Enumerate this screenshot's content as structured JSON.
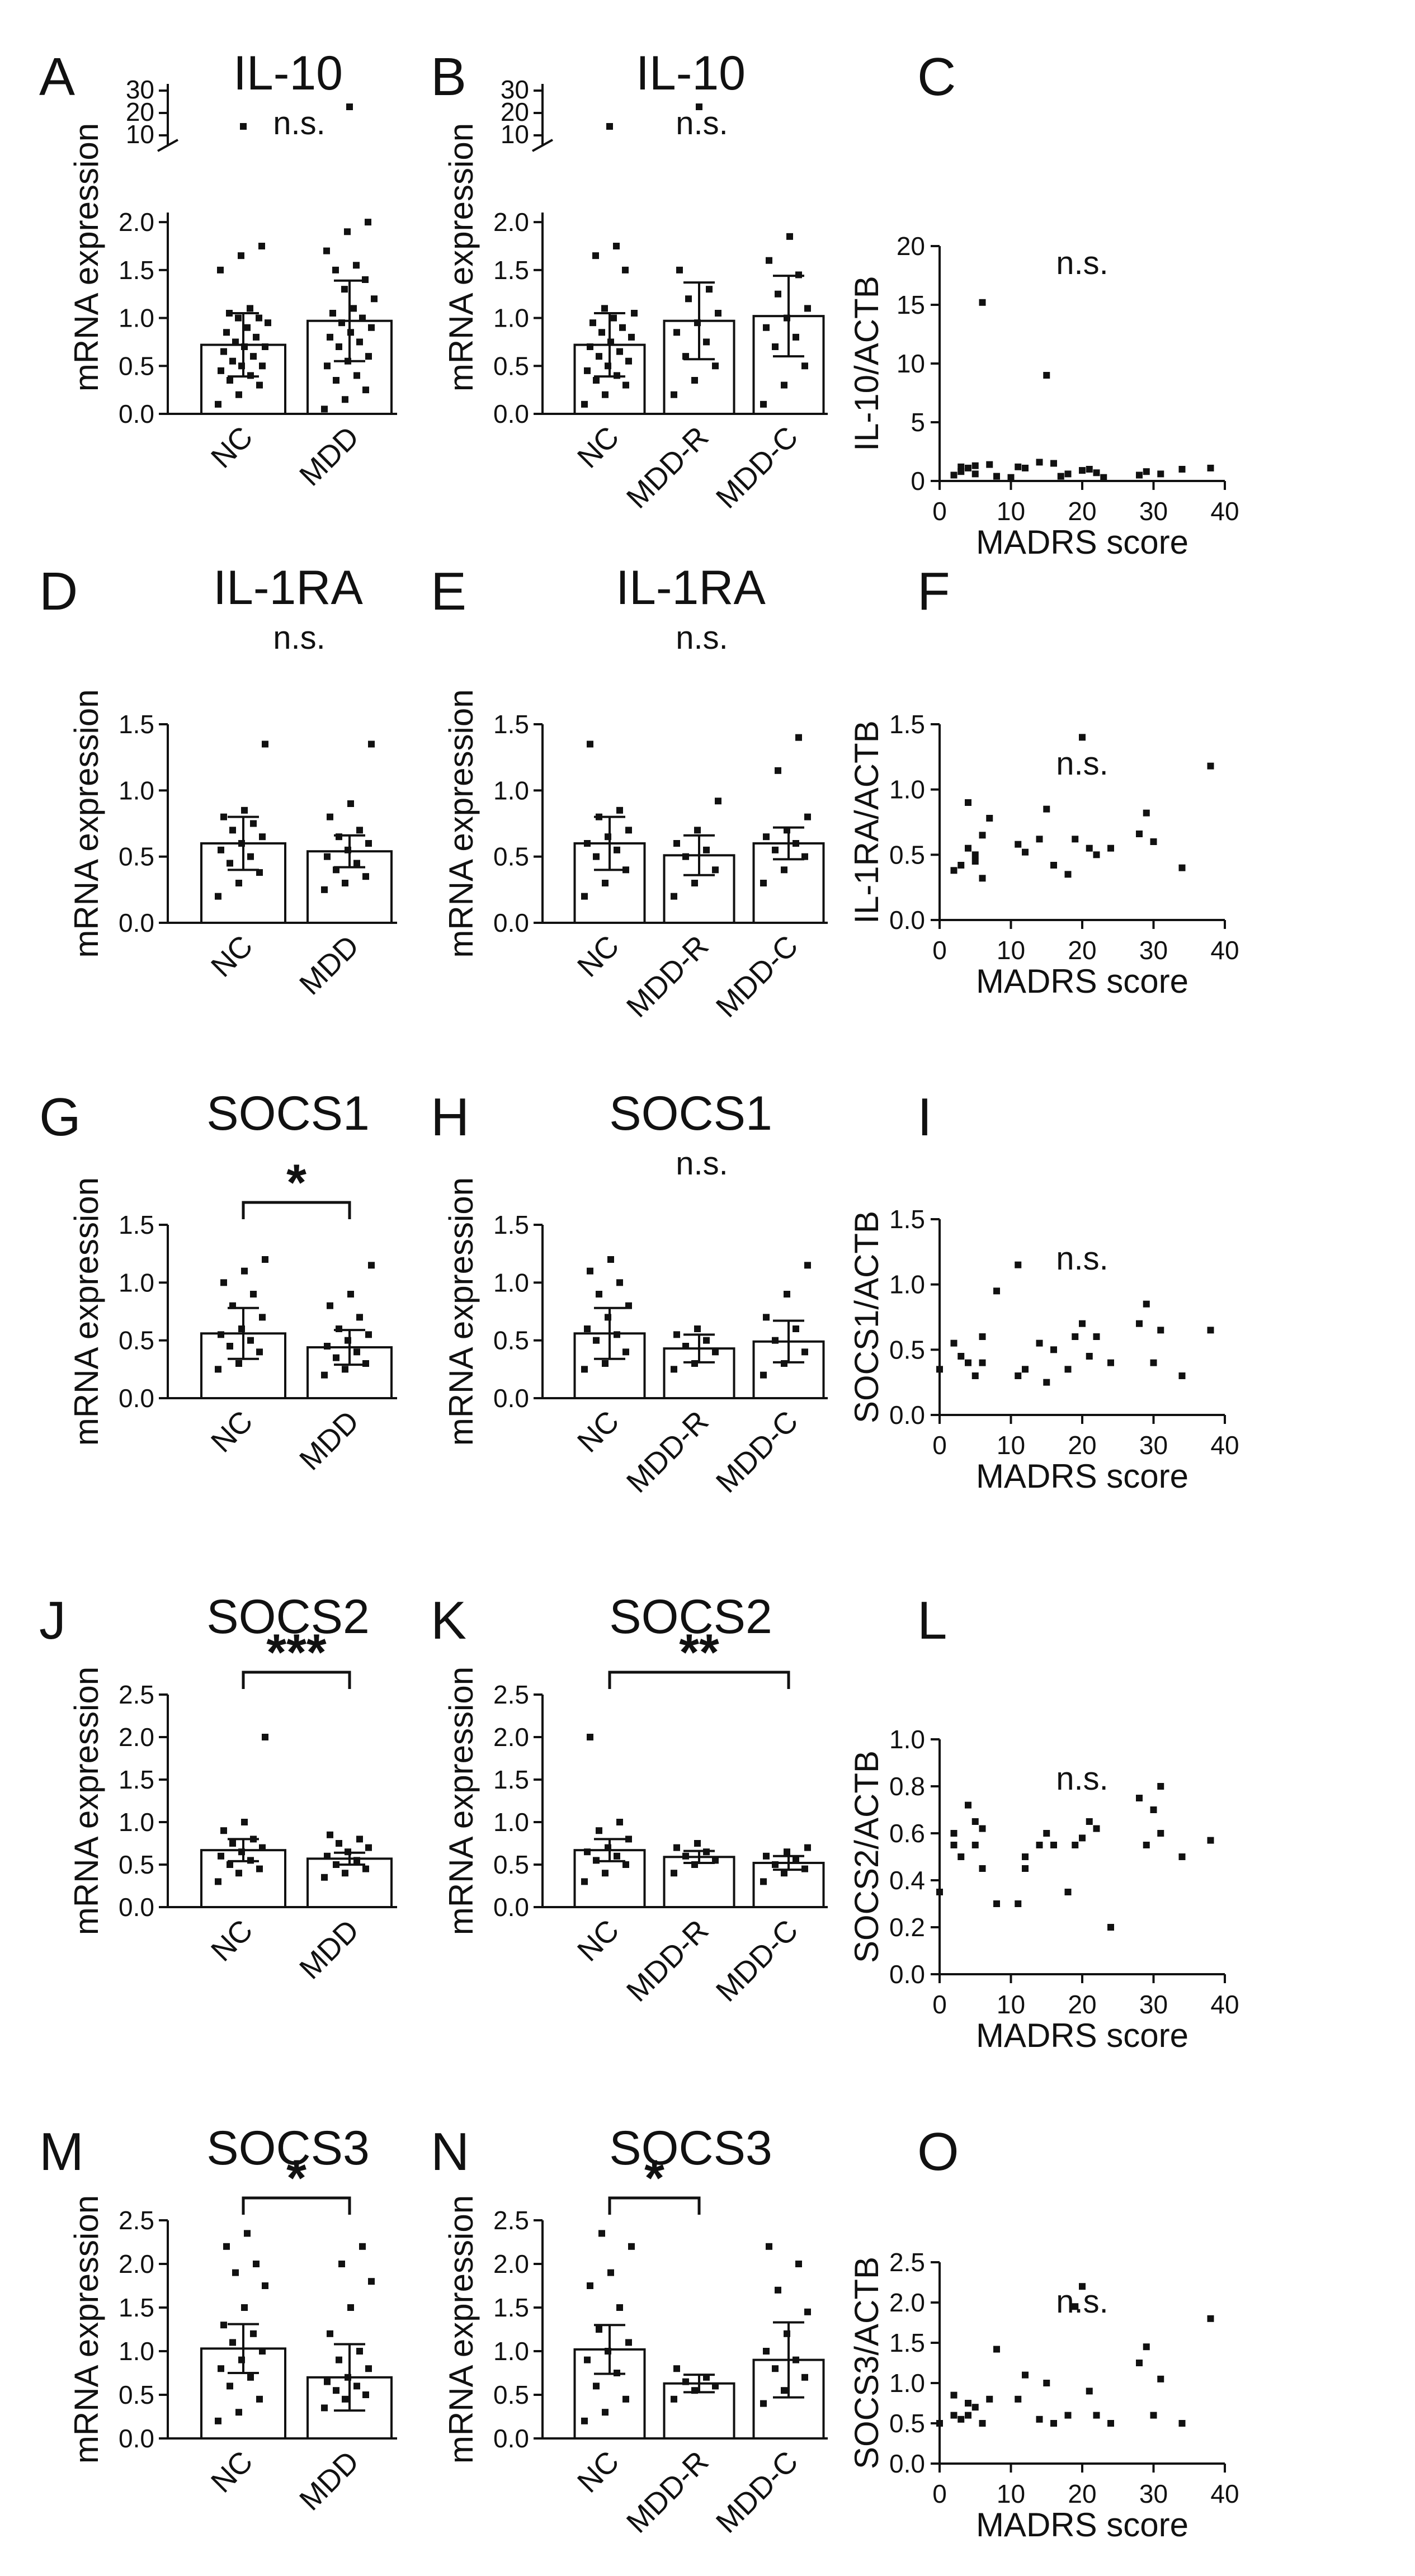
{
  "chart_data": [
    {
      "id": "A",
      "type": "bar",
      "title": "IL-10",
      "ylabel": "mRNA expression",
      "categories": [
        "NC",
        "MDD"
      ],
      "values": [
        0.72,
        0.97
      ],
      "errors": [
        0.33,
        0.42
      ],
      "ylim": [
        0,
        2.1
      ],
      "broken_axis": true,
      "ticks": [
        "0.0",
        "0.5",
        "1.0",
        "1.5",
        "2.0"
      ],
      "break_ticks": [
        "10",
        "20",
        "30"
      ],
      "significance": [
        {
          "text": "n.s."
        }
      ],
      "points": [
        [
          0.1,
          0.2,
          0.3,
          0.35,
          0.4,
          0.45,
          0.5,
          0.5,
          0.55,
          0.6,
          0.65,
          0.7,
          0.7,
          0.75,
          0.8,
          0.85,
          0.9,
          0.95,
          1.0,
          1.0,
          1.05,
          1.1,
          1.5,
          1.65,
          1.75
        ],
        [
          0.05,
          0.15,
          0.25,
          0.35,
          0.4,
          0.5,
          0.55,
          0.6,
          0.7,
          0.75,
          0.8,
          0.85,
          0.9,
          0.95,
          1.0,
          1.05,
          1.1,
          1.2,
          1.3,
          1.4,
          1.5,
          1.55,
          1.7,
          1.9,
          2.0
        ]
      ]
    },
    {
      "id": "B",
      "type": "bar",
      "title": "IL-10",
      "ylabel": "mRNA expression",
      "categories": [
        "NC",
        "MDD-R",
        "MDD-C"
      ],
      "values": [
        0.72,
        0.97,
        1.02
      ],
      "errors": [
        0.33,
        0.4,
        0.42
      ],
      "ylim": [
        0,
        2.1
      ],
      "broken_axis": true,
      "ticks": [
        "0.0",
        "0.5",
        "1.0",
        "1.5",
        "2.0"
      ],
      "break_ticks": [
        "10",
        "20",
        "30"
      ],
      "significance": [
        {
          "text": "n.s."
        }
      ],
      "points": [
        [
          0.1,
          0.2,
          0.3,
          0.35,
          0.4,
          0.45,
          0.5,
          0.55,
          0.6,
          0.65,
          0.7,
          0.75,
          0.8,
          0.85,
          0.9,
          0.95,
          1.0,
          1.05,
          1.1,
          1.5,
          1.65,
          1.75
        ],
        [
          0.2,
          0.35,
          0.5,
          0.6,
          0.75,
          0.85,
          0.95,
          1.05,
          1.2,
          1.3,
          1.5
        ],
        [
          0.1,
          0.3,
          0.5,
          0.7,
          0.8,
          0.9,
          1.0,
          1.1,
          1.25,
          1.45,
          1.6,
          1.85
        ]
      ]
    },
    {
      "id": "C",
      "type": "scatter",
      "title": "n.s.",
      "xlabel": "MADRS score",
      "ylabel": "IL-10/ACTB",
      "xlim": [
        0,
        40
      ],
      "ylim": [
        0,
        20
      ],
      "xticks": [
        "0",
        "10",
        "20",
        "30",
        "40"
      ],
      "yticks": [
        "0",
        "5",
        "10",
        "15",
        "20"
      ],
      "x": [
        2,
        3,
        3,
        4,
        5,
        5,
        6,
        7,
        8,
        10,
        11,
        12,
        14,
        15,
        16,
        17,
        18,
        20,
        21,
        22,
        23,
        28,
        29,
        31,
        34,
        38
      ],
      "y": [
        0.5,
        1.2,
        0.8,
        1.1,
        0.6,
        1.3,
        15.2,
        1.4,
        0.4,
        0.3,
        1.2,
        1.1,
        1.6,
        9.0,
        1.5,
        0.4,
        0.6,
        0.9,
        1.0,
        0.7,
        0.3,
        0.5,
        0.8,
        0.6,
        1.0,
        1.1
      ]
    },
    {
      "id": "D",
      "type": "bar",
      "title": "IL-1RA",
      "ylabel": "mRNA expression",
      "categories": [
        "NC",
        "MDD"
      ],
      "values": [
        0.6,
        0.54
      ],
      "errors": [
        0.2,
        0.12
      ],
      "ylim": [
        0,
        1.5
      ],
      "ticks": [
        "0.0",
        "0.5",
        "1.0",
        "1.5"
      ],
      "significance": [
        {
          "text": "n.s."
        }
      ],
      "points": [
        [
          0.2,
          0.3,
          0.38,
          0.45,
          0.5,
          0.55,
          0.6,
          0.65,
          0.7,
          0.75,
          0.8,
          0.85,
          1.35
        ],
        [
          0.25,
          0.3,
          0.35,
          0.4,
          0.45,
          0.5,
          0.55,
          0.6,
          0.65,
          0.7,
          0.8,
          0.9,
          1.35
        ]
      ]
    },
    {
      "id": "E",
      "type": "bar",
      "title": "IL-1RA",
      "ylabel": "mRNA expression",
      "categories": [
        "NC",
        "MDD-R",
        "MDD-C"
      ],
      "values": [
        0.6,
        0.51,
        0.6
      ],
      "errors": [
        0.2,
        0.15,
        0.12
      ],
      "ylim": [
        0,
        1.5
      ],
      "ticks": [
        "0.0",
        "0.5",
        "1.0",
        "1.5"
      ],
      "significance": [
        {
          "text": "n.s."
        }
      ],
      "points": [
        [
          0.2,
          0.3,
          0.4,
          0.5,
          0.55,
          0.6,
          0.65,
          0.7,
          0.8,
          0.85,
          1.35
        ],
        [
          0.2,
          0.3,
          0.4,
          0.5,
          0.55,
          0.6,
          0.7,
          0.92
        ],
        [
          0.3,
          0.4,
          0.5,
          0.55,
          0.6,
          0.65,
          0.7,
          0.8,
          1.15,
          1.4
        ]
      ]
    },
    {
      "id": "F",
      "type": "scatter",
      "title": "n.s.",
      "xlabel": "MADRS score",
      "ylabel": "IL-1RA/ACTB",
      "xlim": [
        0,
        40
      ],
      "ylim": [
        0,
        1.5
      ],
      "xticks": [
        "0",
        "10",
        "20",
        "30",
        "40"
      ],
      "yticks": [
        "0.0",
        "0.5",
        "1.0",
        "1.5"
      ],
      "x": [
        2,
        3,
        4,
        4,
        5,
        5,
        6,
        6,
        7,
        11,
        12,
        14,
        15,
        16,
        18,
        19,
        20,
        21,
        22,
        24,
        28,
        29,
        30,
        34,
        38
      ],
      "y": [
        0.38,
        0.42,
        0.9,
        0.55,
        0.5,
        0.45,
        0.32,
        0.65,
        0.78,
        0.58,
        0.52,
        0.62,
        0.85,
        0.42,
        0.35,
        0.62,
        1.4,
        0.55,
        0.5,
        0.55,
        0.66,
        0.82,
        0.6,
        0.4,
        1.18
      ]
    },
    {
      "id": "G",
      "type": "bar",
      "title": "SOCS1",
      "ylabel": "mRNA expression",
      "categories": [
        "NC",
        "MDD"
      ],
      "values": [
        0.56,
        0.44
      ],
      "errors": [
        0.22,
        0.15
      ],
      "ylim": [
        0,
        1.5
      ],
      "ticks": [
        "0.0",
        "0.5",
        "1.0",
        "1.5"
      ],
      "significance": [
        {
          "text": "*",
          "from": 0,
          "to": 1
        }
      ],
      "points": [
        [
          0.25,
          0.3,
          0.4,
          0.45,
          0.5,
          0.55,
          0.6,
          0.7,
          0.8,
          0.9,
          1.0,
          1.1,
          1.2
        ],
        [
          0.2,
          0.25,
          0.3,
          0.35,
          0.4,
          0.45,
          0.5,
          0.55,
          0.6,
          0.7,
          0.8,
          0.9,
          1.15
        ]
      ]
    },
    {
      "id": "H",
      "type": "bar",
      "title": "SOCS1",
      "ylabel": "mRNA expression",
      "categories": [
        "NC",
        "MDD-R",
        "MDD-C"
      ],
      "values": [
        0.56,
        0.43,
        0.49
      ],
      "errors": [
        0.22,
        0.12,
        0.18
      ],
      "ylim": [
        0,
        1.5
      ],
      "ticks": [
        "0.0",
        "0.5",
        "1.0",
        "1.5"
      ],
      "significance": [
        {
          "text": "n.s."
        }
      ],
      "points": [
        [
          0.25,
          0.3,
          0.4,
          0.5,
          0.55,
          0.6,
          0.7,
          0.8,
          0.9,
          1.0,
          1.1,
          1.2
        ],
        [
          0.25,
          0.3,
          0.4,
          0.45,
          0.5,
          0.55,
          0.6
        ],
        [
          0.2,
          0.3,
          0.4,
          0.5,
          0.6,
          0.7,
          0.9,
          1.15
        ]
      ]
    },
    {
      "id": "I",
      "type": "scatter",
      "title": "n.s.",
      "xlabel": "MADRS score",
      "ylabel": "SOCS1/ACTB",
      "xlim": [
        0,
        40
      ],
      "ylim": [
        0,
        1.5
      ],
      "xticks": [
        "0",
        "10",
        "20",
        "30",
        "40"
      ],
      "yticks": [
        "0.0",
        "0.5",
        "1.0",
        "1.5"
      ],
      "x": [
        0,
        2,
        3,
        4,
        5,
        6,
        6,
        8,
        11,
        11,
        12,
        14,
        15,
        16,
        18,
        19,
        20,
        21,
        22,
        24,
        28,
        29,
        30,
        31,
        34,
        38
      ],
      "y": [
        0.35,
        0.55,
        0.45,
        0.4,
        0.3,
        0.6,
        0.4,
        0.95,
        1.15,
        0.3,
        0.35,
        0.55,
        0.25,
        0.5,
        0.35,
        0.6,
        0.7,
        0.45,
        0.6,
        0.4,
        0.7,
        0.85,
        0.4,
        0.65,
        0.3,
        0.65
      ]
    },
    {
      "id": "J",
      "type": "bar",
      "title": "SOCS2",
      "ylabel": "mRNA expression",
      "categories": [
        "NC",
        "MDD"
      ],
      "values": [
        0.67,
        0.57
      ],
      "errors": [
        0.13,
        0.07
      ],
      "ylim": [
        0,
        2.5
      ],
      "ticks": [
        "0.0",
        "0.5",
        "1.0",
        "1.5",
        "2.0",
        "2.5"
      ],
      "significance": [
        {
          "text": "***",
          "from": 0,
          "to": 1
        }
      ],
      "points": [
        [
          0.3,
          0.4,
          0.45,
          0.5,
          0.55,
          0.6,
          0.65,
          0.7,
          0.75,
          0.8,
          0.9,
          1.0,
          2.0
        ],
        [
          0.35,
          0.4,
          0.45,
          0.5,
          0.55,
          0.6,
          0.65,
          0.7,
          0.75,
          0.8,
          0.85
        ]
      ]
    },
    {
      "id": "K",
      "type": "bar",
      "title": "SOCS2",
      "ylabel": "mRNA expression",
      "categories": [
        "NC",
        "MDD-R",
        "MDD-C"
      ],
      "values": [
        0.67,
        0.59,
        0.52
      ],
      "errors": [
        0.13,
        0.07,
        0.08
      ],
      "ylim": [
        0,
        2.5
      ],
      "ticks": [
        "0.0",
        "0.5",
        "1.0",
        "1.5",
        "2.0",
        "2.5"
      ],
      "significance": [
        {
          "text": "**",
          "from": 0,
          "to": 2
        }
      ],
      "points": [
        [
          0.3,
          0.4,
          0.5,
          0.55,
          0.6,
          0.65,
          0.7,
          0.8,
          0.9,
          1.0,
          2.0
        ],
        [
          0.4,
          0.5,
          0.55,
          0.6,
          0.65,
          0.7,
          0.75
        ],
        [
          0.3,
          0.4,
          0.45,
          0.5,
          0.55,
          0.6,
          0.65,
          0.7
        ]
      ]
    },
    {
      "id": "L",
      "type": "scatter",
      "title": "n.s.",
      "xlabel": "MADRS score",
      "ylabel": "SOCS2/ACTB",
      "xlim": [
        0,
        40
      ],
      "ylim": [
        0,
        1.0
      ],
      "xticks": [
        "0",
        "10",
        "20",
        "30",
        "40"
      ],
      "yticks": [
        "0.0",
        "0.2",
        "0.4",
        "0.6",
        "0.8",
        "1.0"
      ],
      "x": [
        0,
        2,
        2,
        3,
        4,
        5,
        5,
        6,
        6,
        8,
        11,
        12,
        12,
        14,
        15,
        16,
        18,
        19,
        20,
        21,
        22,
        24,
        28,
        29,
        30,
        31,
        31,
        34,
        38
      ],
      "y": [
        0.35,
        0.55,
        0.6,
        0.5,
        0.72,
        0.55,
        0.65,
        0.45,
        0.62,
        0.3,
        0.3,
        0.45,
        0.5,
        0.55,
        0.6,
        0.55,
        0.35,
        0.55,
        0.58,
        0.65,
        0.62,
        0.2,
        0.75,
        0.55,
        0.7,
        0.8,
        0.6,
        0.5,
        0.57
      ]
    },
    {
      "id": "M",
      "type": "bar",
      "title": "SOCS3",
      "ylabel": "mRNA expression",
      "categories": [
        "NC",
        "MDD"
      ],
      "values": [
        1.03,
        0.7
      ],
      "errors": [
        0.28,
        0.38
      ],
      "ylim": [
        0,
        2.5
      ],
      "ticks": [
        "0.0",
        "0.5",
        "1.0",
        "1.5",
        "2.0",
        "2.5"
      ],
      "significance": [
        {
          "text": "*",
          "from": 0,
          "to": 1
        }
      ],
      "points": [
        [
          0.2,
          0.3,
          0.45,
          0.6,
          0.7,
          0.8,
          0.9,
          1.0,
          1.1,
          1.2,
          1.3,
          1.5,
          1.75,
          1.9,
          2.0,
          2.2,
          2.35
        ],
        [
          0.35,
          0.45,
          0.5,
          0.55,
          0.6,
          0.65,
          0.7,
          0.8,
          0.9,
          1.0,
          1.2,
          1.5,
          1.8,
          2.0,
          2.2
        ]
      ]
    },
    {
      "id": "N",
      "type": "bar",
      "title": "SOCS3",
      "ylabel": "mRNA expression",
      "categories": [
        "NC",
        "MDD-R",
        "MDD-C"
      ],
      "values": [
        1.02,
        0.63,
        0.9
      ],
      "errors": [
        0.28,
        0.1,
        0.43
      ],
      "ylim": [
        0,
        2.5
      ],
      "ticks": [
        "0.0",
        "0.5",
        "1.0",
        "1.5",
        "2.0",
        "2.5"
      ],
      "significance": [
        {
          "text": "*",
          "from": 0,
          "to": 1
        }
      ],
      "points": [
        [
          0.2,
          0.3,
          0.45,
          0.6,
          0.75,
          0.9,
          1.0,
          1.1,
          1.25,
          1.5,
          1.75,
          1.9,
          2.2,
          2.35
        ],
        [
          0.45,
          0.55,
          0.6,
          0.65,
          0.7,
          0.8
        ],
        [
          0.4,
          0.55,
          0.7,
          0.8,
          0.9,
          1.0,
          1.2,
          1.45,
          1.7,
          2.0,
          2.2
        ]
      ]
    },
    {
      "id": "O",
      "type": "scatter",
      "title": "n.s.",
      "xlabel": "MADRS score",
      "ylabel": "SOCS3/ACTB",
      "xlim": [
        0,
        40
      ],
      "ylim": [
        0,
        2.5
      ],
      "xticks": [
        "0",
        "10",
        "20",
        "30",
        "40"
      ],
      "yticks": [
        "0.0",
        "0.5",
        "1.0",
        "1.5",
        "2.0",
        "2.5"
      ],
      "x": [
        0,
        2,
        2,
        3,
        4,
        4,
        5,
        6,
        7,
        8,
        11,
        12,
        14,
        15,
        16,
        18,
        19,
        20,
        21,
        22,
        24,
        28,
        29,
        30,
        31,
        34,
        38
      ],
      "y": [
        0.5,
        0.6,
        0.85,
        0.55,
        0.75,
        0.6,
        0.7,
        0.5,
        0.8,
        1.42,
        0.8,
        1.1,
        0.55,
        1.0,
        0.5,
        0.6,
        1.95,
        2.2,
        0.9,
        0.6,
        0.5,
        1.25,
        1.45,
        0.6,
        1.05,
        0.5,
        1.8
      ]
    }
  ]
}
